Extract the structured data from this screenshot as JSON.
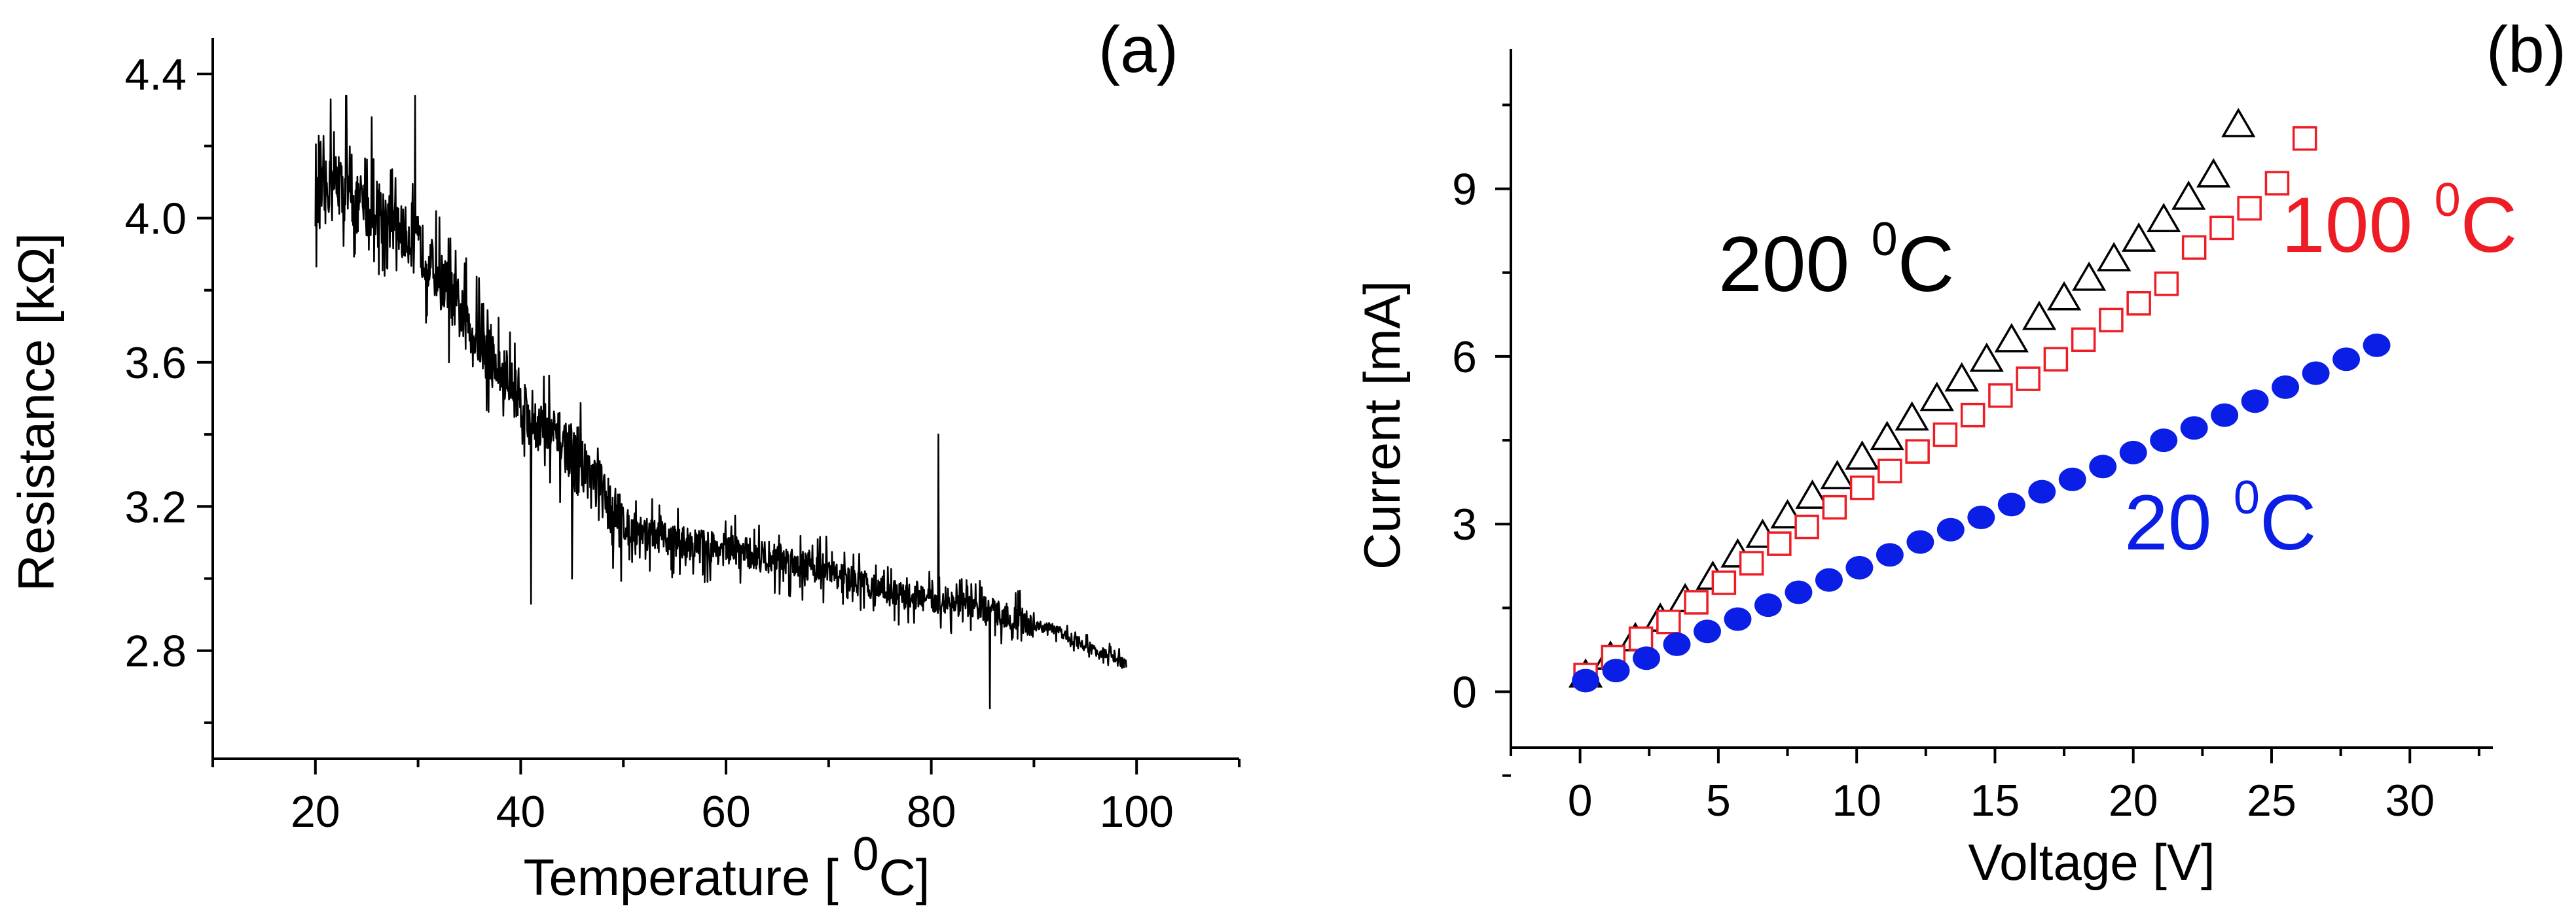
{
  "colors": {
    "axis": "#000000",
    "trace": "#000000",
    "series_200": "#000000",
    "series_100": "#ee1c24",
    "series_20": "#0a1ee6"
  },
  "chart_data": [
    {
      "id": "a",
      "panel_label": "(a)",
      "type": "line",
      "title": "",
      "xlabel_main": "Temperature [ ",
      "xlabel_sup": "0",
      "xlabel_tail": "C]",
      "ylabel": "Resistance [kΩ]",
      "xlim": [
        10,
        110
      ],
      "ylim": [
        2.5,
        4.5
      ],
      "xticks": [
        20,
        40,
        60,
        80,
        100
      ],
      "yticks": [
        2.8,
        3.2,
        3.6,
        4.0,
        4.4
      ],
      "ytick_labels": [
        "2.8",
        "3.2",
        "3.6",
        "4.0",
        "4.4"
      ],
      "grid": false,
      "series": [
        {
          "name": "Resistance",
          "points": [
            [
              20.0,
              4.04
            ],
            [
              21.0,
              4.08
            ],
            [
              22.0,
              4.1
            ],
            [
              23.0,
              4.06
            ],
            [
              24.0,
              4.04
            ],
            [
              25.0,
              4.02
            ],
            [
              26.0,
              4.03
            ],
            [
              27.0,
              4.0
            ],
            [
              28.0,
              3.97
            ],
            [
              29.0,
              3.95
            ],
            [
              30.0,
              3.93
            ],
            [
              31.0,
              3.88
            ],
            [
              32.0,
              3.84
            ],
            [
              33.0,
              3.8
            ],
            [
              34.0,
              3.74
            ],
            [
              35.0,
              3.7
            ],
            [
              36.0,
              3.66
            ],
            [
              37.0,
              3.62
            ],
            [
              38.0,
              3.57
            ],
            [
              39.0,
              3.54
            ],
            [
              40.0,
              3.5
            ],
            [
              41.0,
              3.45
            ],
            [
              42.0,
              3.42
            ],
            [
              43.0,
              3.4
            ],
            [
              44.0,
              3.38
            ],
            [
              45.0,
              3.35
            ],
            [
              46.0,
              3.32
            ],
            [
              47.0,
              3.28
            ],
            [
              48.0,
              3.24
            ],
            [
              49.0,
              3.19
            ],
            [
              50.0,
              3.15
            ],
            [
              52.0,
              3.13
            ],
            [
              54.0,
              3.11
            ],
            [
              56.0,
              3.1
            ],
            [
              58.0,
              3.09
            ],
            [
              60.0,
              3.08
            ],
            [
              62.0,
              3.07
            ],
            [
              64.0,
              3.06
            ],
            [
              66.0,
              3.05
            ],
            [
              68.0,
              3.04
            ],
            [
              70.0,
              3.02
            ],
            [
              72.0,
              3.0
            ],
            [
              74.0,
              2.98
            ],
            [
              76.0,
              2.96
            ],
            [
              78.0,
              2.95
            ],
            [
              80.0,
              2.94
            ],
            [
              82.0,
              2.93
            ],
            [
              84.0,
              2.92
            ],
            [
              86.0,
              2.91
            ],
            [
              88.0,
              2.89
            ],
            [
              90.0,
              2.87
            ],
            [
              92.0,
              2.86
            ],
            [
              94.0,
              2.83
            ],
            [
              96.0,
              2.8
            ],
            [
              98.0,
              2.78
            ],
            [
              99.0,
              2.76
            ]
          ],
          "spikes": [
            [
              21.5,
              4.33
            ],
            [
              23.0,
              4.34
            ],
            [
              25.5,
              4.28
            ],
            [
              27.0,
              3.86
            ],
            [
              29.7,
              4.34
            ],
            [
              33.0,
              3.6
            ],
            [
              41.0,
              2.93
            ],
            [
              45.0,
              3.0
            ],
            [
              80.7,
              3.4
            ],
            [
              85.7,
              2.64
            ]
          ]
        }
      ]
    },
    {
      "id": "b",
      "panel_label": "(b)",
      "type": "scatter",
      "title": "",
      "xlabel": "Voltage [V]",
      "ylabel": "Current [mA]",
      "xlim": [
        -2.5,
        33
      ],
      "ylim": [
        -1,
        11.5
      ],
      "xticks": [
        0,
        5,
        10,
        15,
        20,
        25,
        30
      ],
      "yticks": [
        0,
        3,
        6,
        9
      ],
      "grid": false,
      "series": [
        {
          "name": "200 °C",
          "marker": "open-triangle",
          "color_key": "series_200",
          "annotation_main": "200 ",
          "annotation_sup": "0",
          "annotation_tail": "C",
          "x": [
            0.2,
            1.1,
            2.0,
            2.9,
            3.8,
            4.8,
            5.7,
            6.6,
            7.5,
            8.4,
            9.3,
            10.2,
            11.1,
            12.0,
            12.9,
            13.8,
            14.7,
            15.6,
            16.6,
            17.5,
            18.4,
            19.3,
            20.2,
            21.1,
            22.0,
            22.9,
            23.8
          ],
          "y": [
            0.3,
            0.62,
            0.95,
            1.3,
            1.65,
            2.05,
            2.45,
            2.8,
            3.15,
            3.5,
            3.85,
            4.2,
            4.55,
            4.9,
            5.25,
            5.6,
            5.95,
            6.3,
            6.7,
            7.05,
            7.4,
            7.75,
            8.1,
            8.45,
            8.85,
            9.25,
            10.15
          ]
        },
        {
          "name": "100 °C",
          "marker": "open-square",
          "color_key": "series_100",
          "annotation_main": "100 ",
          "annotation_sup": "0",
          "annotation_tail": "C",
          "x": [
            0.2,
            1.2,
            2.2,
            3.2,
            4.2,
            5.2,
            6.2,
            7.2,
            8.2,
            9.2,
            10.2,
            11.2,
            12.2,
            13.2,
            14.2,
            15.2,
            16.2,
            17.2,
            18.2,
            19.2,
            20.2,
            21.2,
            22.2,
            23.2,
            24.2,
            25.2,
            26.2
          ],
          "y": [
            0.3,
            0.62,
            0.95,
            1.25,
            1.6,
            1.95,
            2.3,
            2.65,
            2.95,
            3.3,
            3.65,
            3.95,
            4.3,
            4.6,
            4.95,
            5.3,
            5.6,
            5.95,
            6.3,
            6.65,
            6.95,
            7.3,
            7.95,
            8.3,
            8.65,
            9.1,
            9.9
          ]
        },
        {
          "name": "20 °C",
          "marker": "filled-circle",
          "color_key": "series_20",
          "annotation_main": "20 ",
          "annotation_sup": "0",
          "annotation_tail": "C",
          "x": [
            0.2,
            1.3,
            2.4,
            3.5,
            4.6,
            5.7,
            6.8,
            7.9,
            9.0,
            10.1,
            11.2,
            12.3,
            13.4,
            14.5,
            15.6,
            16.7,
            17.8,
            18.9,
            20.0,
            21.1,
            22.2,
            23.3,
            24.4,
            25.5,
            26.6,
            27.7,
            28.8
          ],
          "y": [
            0.2,
            0.38,
            0.6,
            0.85,
            1.08,
            1.3,
            1.55,
            1.78,
            2.0,
            2.22,
            2.45,
            2.68,
            2.9,
            3.12,
            3.35,
            3.58,
            3.8,
            4.03,
            4.28,
            4.5,
            4.72,
            4.95,
            5.2,
            5.45,
            5.7,
            5.95,
            6.2
          ]
        }
      ]
    }
  ]
}
